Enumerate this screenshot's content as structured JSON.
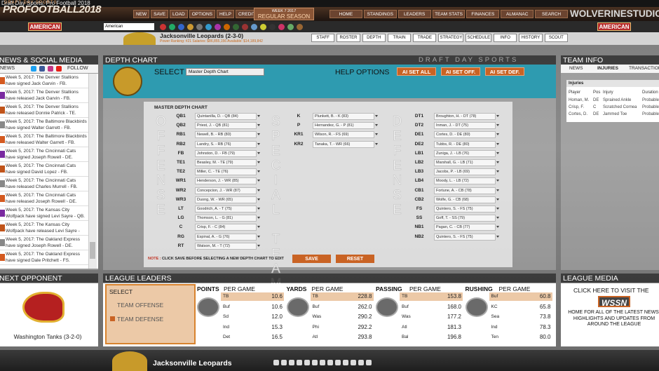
{
  "window_title": "Draft Day Sports: Pro Football 2018",
  "header": {
    "logo_small": "DRAFT DAY SPORTS",
    "logo": "PROFOOTBALL2018",
    "week": "WEEK 7 2017",
    "phase": "REGULAR SEASON",
    "menu_left": [
      "NEW",
      "SAVE",
      "LOAD",
      "OPTIONS",
      "HELP",
      "CREDITS"
    ],
    "menu_right": [
      "HOME",
      "STANDINGS",
      "LEADERS",
      "TEAM STATS",
      "FINANCES",
      "ALMANAC",
      "SEARCH"
    ],
    "studio": "WOLVERINESTUDIOS"
  },
  "team_bar": {
    "conference": "AMERICAN",
    "dropdown": "American",
    "team": "Jacksonville Leopards (2-3-0)",
    "stats": "Power Ranking: #21     Salaries: $86,855,156     Available: $14,189,842",
    "buttons": [
      "STAFF",
      "ROSTER",
      "DEPTH",
      "TRAIN",
      "TRADE",
      "STRATEGY",
      "SCHEDULE",
      "INFO",
      "HISTORY",
      "SCOUT"
    ]
  },
  "news_panel": {
    "title": "NEWS & SOCIAL MEDIA",
    "tab": "NEWS",
    "follow": "FOLLOW",
    "items": [
      "Week 5, 2017: The Denver Stallions have signed Jack Garvin - FB.",
      "Week 5, 2017: The Denver Stallions have released Jack Garvin - FB.",
      "Week 5, 2017: The Denver Stallions have released Donnie Patrick - TE.",
      "Week 5, 2017: The Baltimore Blackbirds have signed Walter Garrett - FB.",
      "Week 5, 2017: The Baltimore Blackbirds have released Walter Garrett - FB.",
      "Week 5, 2017: The Cincinnati Cats have signed Joseph Rowell - DE.",
      "Week 5, 2017: The Cincinnati Cats have signed David Lopez - FB.",
      "Week 5, 2017: The Cincinnati Cats have released Charles Murrell - FB.",
      "Week 5, 2017: The Cincinnati Cats have released Joseph Rowell - DE.",
      "Week 5, 2017: The Kansas City Wolfpack have signed Levi Sayre - QB.",
      "Week 5, 2017: The Kansas City Wolfpack have released Levi Sayre - QB.",
      "Week 5, 2017: The Oakland Express have signed Joseph Rowell - DE.",
      "Week 5, 2017: The Oakland Express have signed Dale Pritchett - FS."
    ]
  },
  "depth_chart": {
    "title": "DEPTH CHART",
    "brand": "DRAFT DAY SPORTS",
    "select": "SELECT",
    "dropdown": "Master Depth Chart",
    "help": "HELP OPTIONS",
    "ai_buttons": [
      "AI SET ALL",
      "AI SET OFF.",
      "AI SET DEF."
    ],
    "subtitle": "MASTER DEPTH CHART",
    "offense": {
      "label": "OFFENSE",
      "rows": [
        [
          "QB1",
          "Quintanilla, D. - QB (84)"
        ],
        [
          "QB2",
          "Priest, J. - QB (81)"
        ],
        [
          "RB1",
          "Newell, B. - RB (80)"
        ],
        [
          "RB2",
          "Landry, S. - RB (76)"
        ],
        [
          "FB",
          "Johnston, D. - FB (79)"
        ],
        [
          "TE1",
          "Beasley, M. - TE (79)"
        ],
        [
          "TE2",
          "Miller, C. - TE (76)"
        ],
        [
          "WR1",
          "Henderson, J. - WR (85)"
        ],
        [
          "WR2",
          "Concepcion, J. - WR (87)"
        ],
        [
          "WR3",
          "Duong, W. - WR (65)"
        ],
        [
          "LT",
          "Goodrich, A. - T (75)"
        ],
        [
          "LG",
          "Thomson, L. - G (81)"
        ],
        [
          "C",
          "Crisp, F. - C (84)"
        ],
        [
          "RG",
          "Espinal, A. - G (76)"
        ],
        [
          "RT",
          "Watson, M. - T (72)"
        ]
      ]
    },
    "special": {
      "label": "SPECIAL TEAMS",
      "rows": [
        [
          "K",
          "Plunkett, B. - K (83)"
        ],
        [
          "P",
          "Hernandez, G. - P (81)"
        ],
        [
          "KR1",
          "Wilson, R. - FS (69)"
        ],
        [
          "KR2",
          "Tanaka, T. - WR (66)"
        ]
      ]
    },
    "defense": {
      "label": "DEFENSE",
      "rows": [
        [
          "DT1",
          "Broughton, H. - DT (78)"
        ],
        [
          "DT2",
          "Inman, J. - DT (75)"
        ],
        [
          "DE1",
          "Cortes, D. - DE (80)"
        ],
        [
          "DE2",
          "Tubbs, R. - DE (80)"
        ],
        [
          "LB1",
          "Zuniga, J. - LB (76)"
        ],
        [
          "LB2",
          "Marshall, G. - LB (71)"
        ],
        [
          "LB3",
          "Jacobs, P. - LB (69)"
        ],
        [
          "LB4",
          "Moody, L. - LB (72)"
        ],
        [
          "CB1",
          "Fortune, A. - CB (78)"
        ],
        [
          "CB2",
          "Wolfe, G. - CB (68)"
        ],
        [
          "FS",
          "Quintero, S. - FS (75)"
        ],
        [
          "SS",
          "Goff, T. - SS (79)"
        ],
        [
          "NB1",
          "Pagan, C. - CB (77)"
        ],
        [
          "NB2",
          "Quintero, S. - FS (75)"
        ]
      ]
    },
    "note_label": "NOTE :",
    "note": "CLICK SAVE BEFORE SELECTING A NEW DEPTH CHART TO EDIT",
    "save": "SAVE",
    "reset": "RESET"
  },
  "team_info": {
    "title": "TEAM INFO",
    "tabs": [
      "NEWS",
      "INJURIES",
      "TRANSACTIONS"
    ],
    "table_title": "Injuries",
    "columns": [
      "Player",
      "Pos",
      "Injury",
      "Duration"
    ],
    "rows": [
      [
        "Homan, M.",
        "DE",
        "Sprained Ankle",
        "Probable"
      ],
      [
        "Crisp, F.",
        "C",
        "Scratched Cornea",
        "Probable"
      ],
      [
        "Cortes, D.",
        "DE",
        "Jammed Toe",
        "Probable"
      ]
    ]
  },
  "next_opponent": {
    "title": "NEXT OPPONENT",
    "team": "Washington Tanks (3-2-0)"
  },
  "league_leaders": {
    "title": "LEAGUE LEADERS",
    "select": "SELECT",
    "options": [
      "TEAM OFFENSE",
      "TEAM DEFENSE"
    ],
    "tables": [
      {
        "title": "POINTS",
        "subtitle": "PER GAME",
        "rows": [
          [
            "TB",
            "10.6"
          ],
          [
            "Buf",
            "10.6"
          ],
          [
            "Sd",
            "12.0"
          ],
          [
            "Ind",
            "15.3"
          ],
          [
            "Det",
            "16.5"
          ]
        ]
      },
      {
        "title": "YARDS",
        "subtitle": "PER GAME",
        "rows": [
          [
            "TB",
            "228.8"
          ],
          [
            "Buf",
            "262.0"
          ],
          [
            "Was",
            "290.2"
          ],
          [
            "Phi",
            "292.2"
          ],
          [
            "Atl",
            "293.8"
          ]
        ]
      },
      {
        "title": "PASSING",
        "subtitle": "PER GAME",
        "rows": [
          [
            "TB",
            "153.8"
          ],
          [
            "Buf",
            "168.0"
          ],
          [
            "Was",
            "177.2"
          ],
          [
            "Atl",
            "181.3"
          ],
          [
            "Bal",
            "196.8"
          ]
        ]
      },
      {
        "title": "RUSHING",
        "subtitle": "PER GAME",
        "rows": [
          [
            "Buf",
            "60.8"
          ],
          [
            "KC",
            "65.8"
          ],
          [
            "Sea",
            "73.8"
          ],
          [
            "Ind",
            "78.3"
          ],
          [
            "Ten",
            "80.0"
          ]
        ]
      }
    ]
  },
  "league_media": {
    "title": "LEAGUE MEDIA",
    "line1": "CLICK HERE TO VISIT THE",
    "brand": "WSSN",
    "line2": "HOME FOR ALL OF THE LATEST NEWS, HIGHLIGHTS AND UPDATES FROM AROUND THE LEAGUE"
  },
  "footer": {
    "team": "Jacksonville Leopards"
  }
}
